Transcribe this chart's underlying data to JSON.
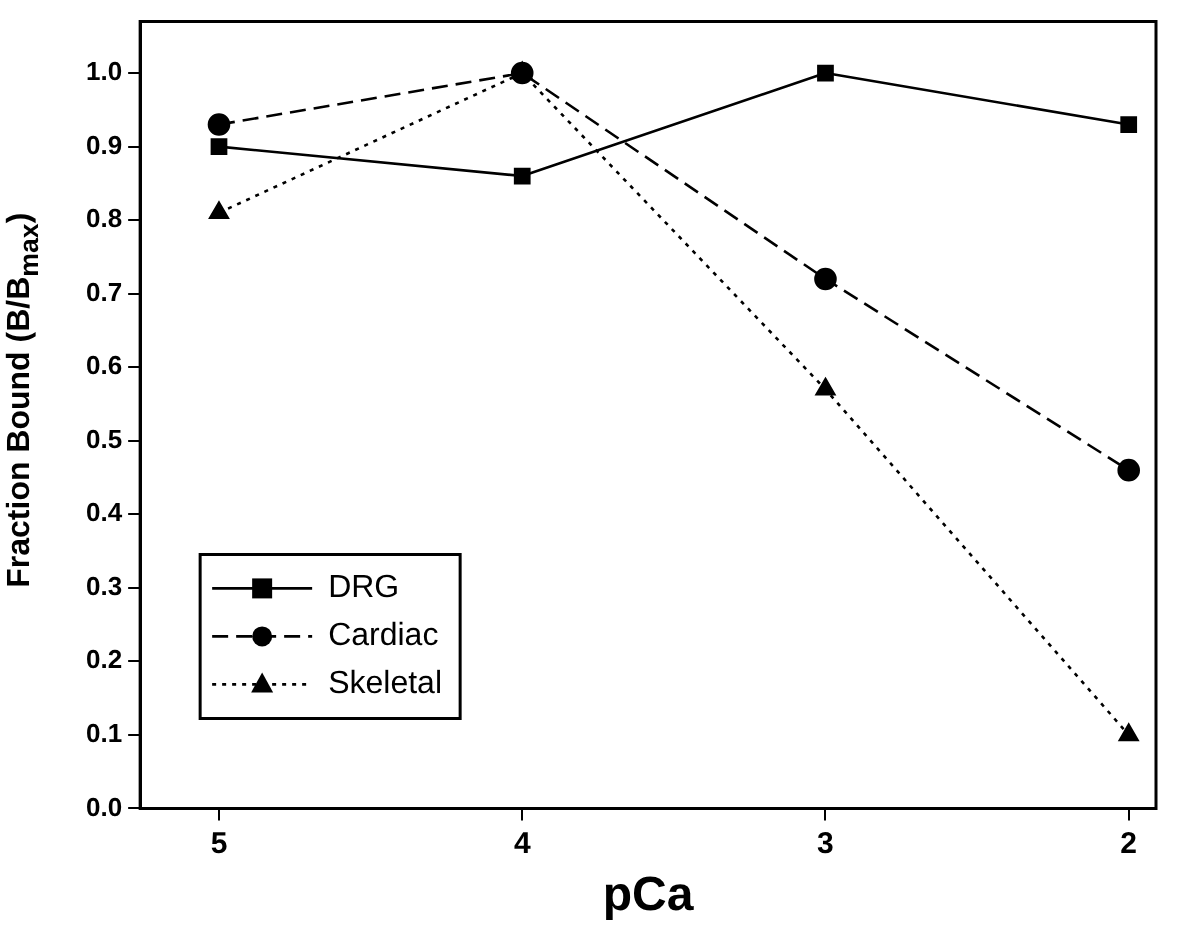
{
  "chart_data": {
    "type": "line",
    "xlabel": "pCa",
    "ylabel": "Fraction Bound (B/B$_{max}$)",
    "x": [
      5,
      4,
      3,
      2
    ],
    "series": [
      {
        "name": "DRG",
        "color": "#000000",
        "values": [
          0.9,
          0.86,
          1.0,
          0.93
        ],
        "marker": "square",
        "line_style": "solid"
      },
      {
        "name": "Cardiac",
        "color": "#000000",
        "values": [
          0.93,
          1.0,
          0.72,
          0.46
        ],
        "marker": "circle",
        "line_style": "dashed"
      },
      {
        "name": "Skeletal",
        "color": "#000000",
        "values": [
          0.81,
          1.0,
          0.57,
          0.1
        ],
        "marker": "triangle",
        "line_style": "dotted"
      }
    ],
    "xlim": [
      5.26,
      1.91
    ],
    "xticks": [
      5,
      4,
      3,
      2
    ],
    "ylim": [
      0,
      1.07
    ],
    "yticks": [
      {
        "value": 0,
        "label": "0.0"
      },
      0.1,
      0.2,
      0.3,
      0.4,
      0.5,
      0.6,
      0.7,
      0.8,
      0.9,
      {
        "value": 1,
        "label": "1.0"
      }
    ],
    "grid": false,
    "legend": "bottom left"
  }
}
